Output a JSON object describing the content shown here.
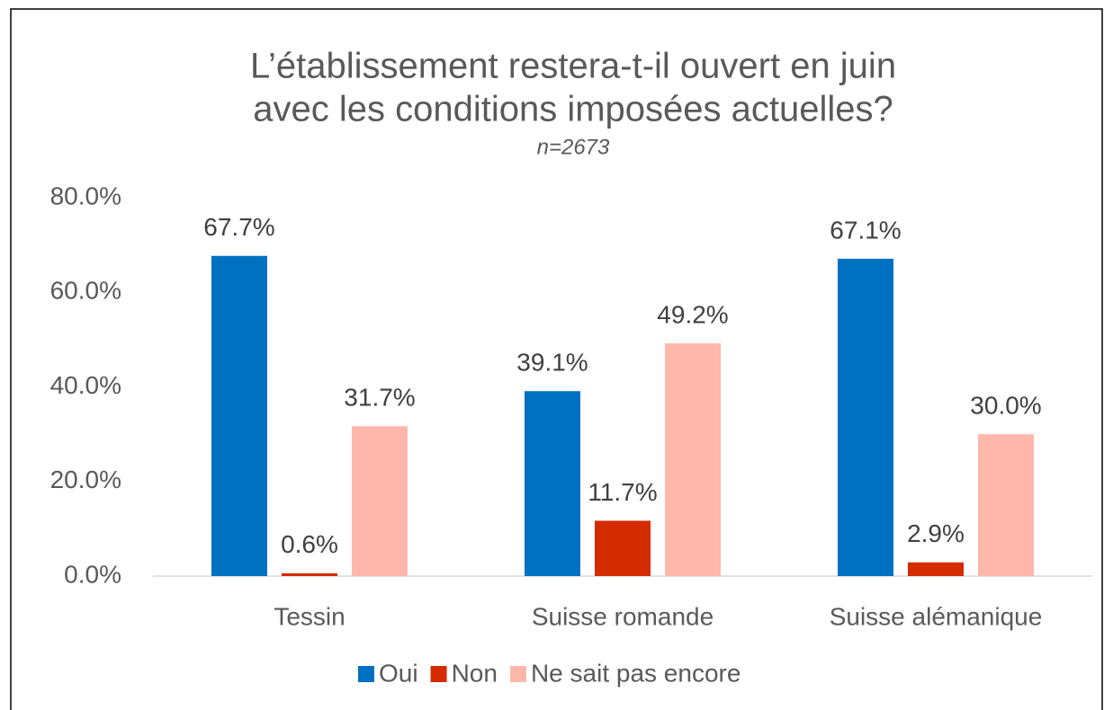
{
  "chart_data": {
    "type": "bar",
    "title": [
      "L’établissement restera-t-il ouvert en juin",
      "avec les conditions imposées actuelles?"
    ],
    "subtitle": "n=2673",
    "categories": [
      "Tessin",
      "Suisse romande",
      "Suisse alémanique"
    ],
    "series": [
      {
        "name": "Oui",
        "color": "#0070c0",
        "values": [
          67.7,
          39.1,
          67.1
        ],
        "value_labels": [
          "67.7%",
          "39.1%",
          "67.1%"
        ]
      },
      {
        "name": "Non",
        "color": "#d52b00",
        "values": [
          0.6,
          11.7,
          2.9
        ],
        "value_labels": [
          "0.6%",
          "11.7%",
          "2.9%"
        ]
      },
      {
        "name": "Ne sait pas encore",
        "color": "#ffb7ac",
        "values": [
          31.7,
          49.2,
          30.0
        ],
        "value_labels": [
          "31.7%",
          "49.2%",
          "30.0%"
        ]
      }
    ],
    "ylim": [
      0,
      80
    ],
    "yticks": [
      {
        "value": 0,
        "label": "0.0%"
      },
      {
        "value": 20,
        "label": "20.0%"
      },
      {
        "value": 40,
        "label": "40.0%"
      },
      {
        "value": 60,
        "label": "60.0%"
      },
      {
        "value": 80,
        "label": "80.0%"
      }
    ],
    "grid": false,
    "legend": "bottom"
  }
}
